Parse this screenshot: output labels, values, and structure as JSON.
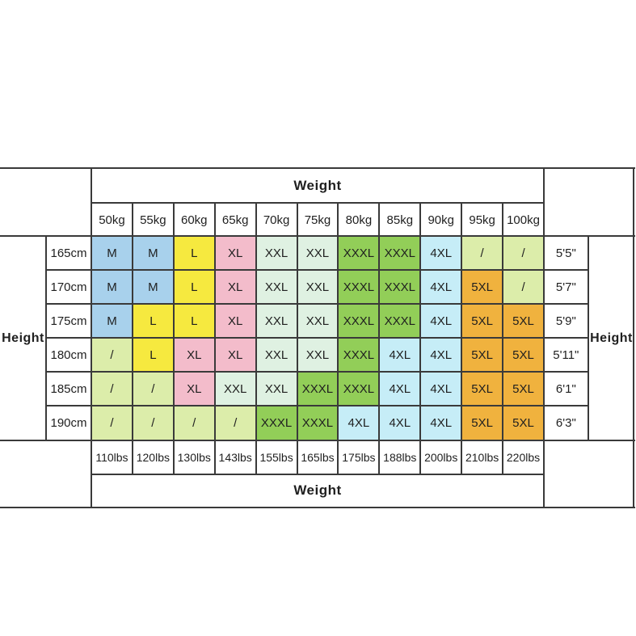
{
  "table": {
    "top_header": "Weight",
    "bottom_header": "Weight",
    "left_header": "Height",
    "right_header": "Height",
    "weight_kg_labels": [
      "50kg",
      "55kg",
      "60kg",
      "65kg",
      "70kg",
      "75kg",
      "80kg",
      "85kg",
      "90kg",
      "95kg",
      "100kg"
    ],
    "weight_lbs_labels": [
      "110lbs",
      "120lbs",
      "130lbs",
      "143lbs",
      "155lbs",
      "165lbs",
      "175lbs",
      "188lbs",
      "200lbs",
      "210lbs",
      "220lbs"
    ],
    "height_cm_labels": [
      "165cm",
      "170cm",
      "175cm",
      "180cm",
      "185cm",
      "190cm"
    ],
    "height_ft_labels": [
      "5'5\"",
      "5'7\"",
      "5'9\"",
      "5'11\"",
      "6'1\"",
      "6'3\""
    ],
    "size_colors": {
      "M": "#a8d1ec",
      "L": "#f6e93f",
      "XL": "#f3bccb",
      "XXL": "#dff1e2",
      "XXXL": "#92ce58",
      "4XL": "#c6edf7",
      "5XL": "#f0b23e",
      "slash": "#dcedaa"
    },
    "grid_line_color": "#3a3a3a"
  },
  "chart_data": {
    "type": "table",
    "title": "Size chart by weight and height",
    "columns_weight_kg": [
      50,
      55,
      60,
      65,
      70,
      75,
      80,
      85,
      90,
      95,
      100
    ],
    "columns_weight_lbs": [
      110,
      120,
      130,
      143,
      155,
      165,
      175,
      188,
      200,
      210,
      220
    ],
    "rows_height_cm": [
      165,
      170,
      175,
      180,
      185,
      190
    ],
    "rows_height_ft": [
      "5'5\"",
      "5'7\"",
      "5'9\"",
      "5'11\"",
      "6'1\"",
      "6'3\""
    ],
    "sizes": [
      [
        "M",
        "M",
        "L",
        "XL",
        "XXL",
        "XXL",
        "XXXL",
        "XXXL",
        "4XL",
        "/",
        "/"
      ],
      [
        "M",
        "M",
        "L",
        "XL",
        "XXL",
        "XXL",
        "XXXL",
        "XXXL",
        "4XL",
        "5XL",
        "/"
      ],
      [
        "M",
        "L",
        "L",
        "XL",
        "XXL",
        "XXL",
        "XXXL",
        "XXXL",
        "4XL",
        "5XL",
        "5XL"
      ],
      [
        "/",
        "L",
        "XL",
        "XL",
        "XXL",
        "XXL",
        "XXXL",
        "4XL",
        "4XL",
        "5XL",
        "5XL"
      ],
      [
        "/",
        "/",
        "XL",
        "XXL",
        "XXL",
        "XXXL",
        "XXXL",
        "4XL",
        "4XL",
        "5XL",
        "5XL"
      ],
      [
        "/",
        "/",
        "/",
        "/",
        "XXXL",
        "XXXL",
        "4XL",
        "4XL",
        "4XL",
        "5XL",
        "5XL"
      ]
    ],
    "legend": "cells colored by size: M blue, L yellow, XL pink, XXL mint, XXXL green, 4XL cyan, 5XL orange, / = not available (light yellow-green)"
  }
}
